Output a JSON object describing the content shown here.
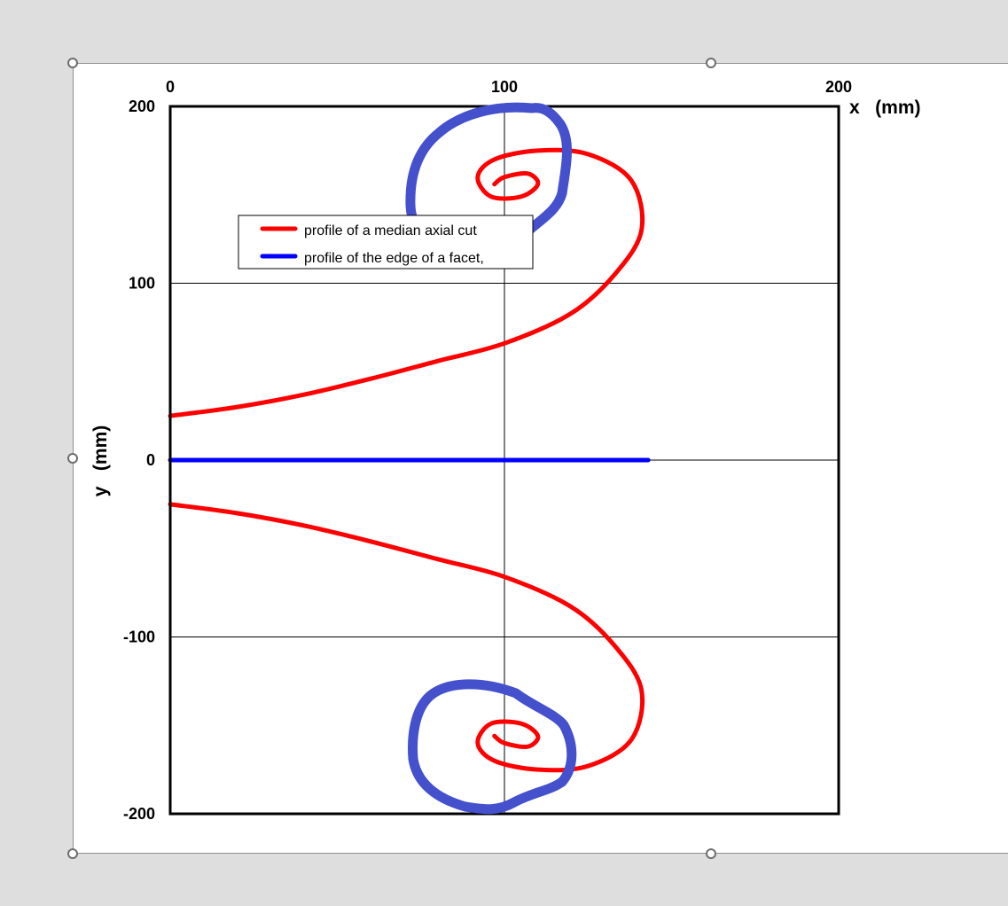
{
  "chart_data": {
    "type": "line",
    "title": "",
    "xlabel": "x   (mm)",
    "ylabel": "y   (mm)",
    "xlim": [
      0,
      200
    ],
    "ylim": [
      -200,
      200
    ],
    "x_ticks": [
      0,
      100,
      200
    ],
    "y_ticks": [
      200,
      100,
      0,
      -100,
      -200
    ],
    "x_tick_labels": [
      "0",
      "100",
      "200"
    ],
    "y_tick_labels": [
      "200",
      "100",
      "0",
      "-100",
      "-200"
    ],
    "grid": true,
    "legend_position": "upper-left",
    "series": [
      {
        "name": "profile of a median axial cut",
        "color": "#ff0000",
        "points": [
          [
            0,
            25
          ],
          [
            20,
            30
          ],
          [
            40,
            37
          ],
          [
            60,
            46
          ],
          [
            80,
            56
          ],
          [
            100,
            66
          ],
          [
            120,
            83
          ],
          [
            133,
            105
          ],
          [
            141,
            130
          ],
          [
            138,
            158
          ],
          [
            125,
            173
          ],
          [
            110,
            175
          ],
          [
            97,
            170
          ],
          [
            92,
            160
          ],
          [
            96,
            149
          ],
          [
            105,
            149
          ],
          [
            110,
            156
          ],
          [
            107,
            162
          ],
          [
            100,
            160
          ],
          [
            97,
            156
          ]
        ]
      },
      {
        "name": "profile of the edge of a facet,",
        "color": "#0000ff",
        "points": [
          [
            0,
            0
          ],
          [
            143,
            0
          ]
        ]
      },
      {
        "name": "",
        "color": "#ff0000",
        "points": [
          [
            0,
            -25
          ],
          [
            20,
            -30
          ],
          [
            40,
            -37
          ],
          [
            60,
            -46
          ],
          [
            80,
            -56
          ],
          [
            100,
            -66
          ],
          [
            120,
            -83
          ],
          [
            133,
            -105
          ],
          [
            141,
            -130
          ],
          [
            138,
            -158
          ],
          [
            125,
            -173
          ],
          [
            110,
            -175
          ],
          [
            97,
            -170
          ],
          [
            92,
            -160
          ],
          [
            96,
            -149
          ],
          [
            105,
            -149
          ],
          [
            110,
            -156
          ],
          [
            107,
            -162
          ],
          [
            100,
            -160
          ],
          [
            97,
            -156
          ]
        ]
      }
    ]
  },
  "annotation_color": "#4450cc"
}
